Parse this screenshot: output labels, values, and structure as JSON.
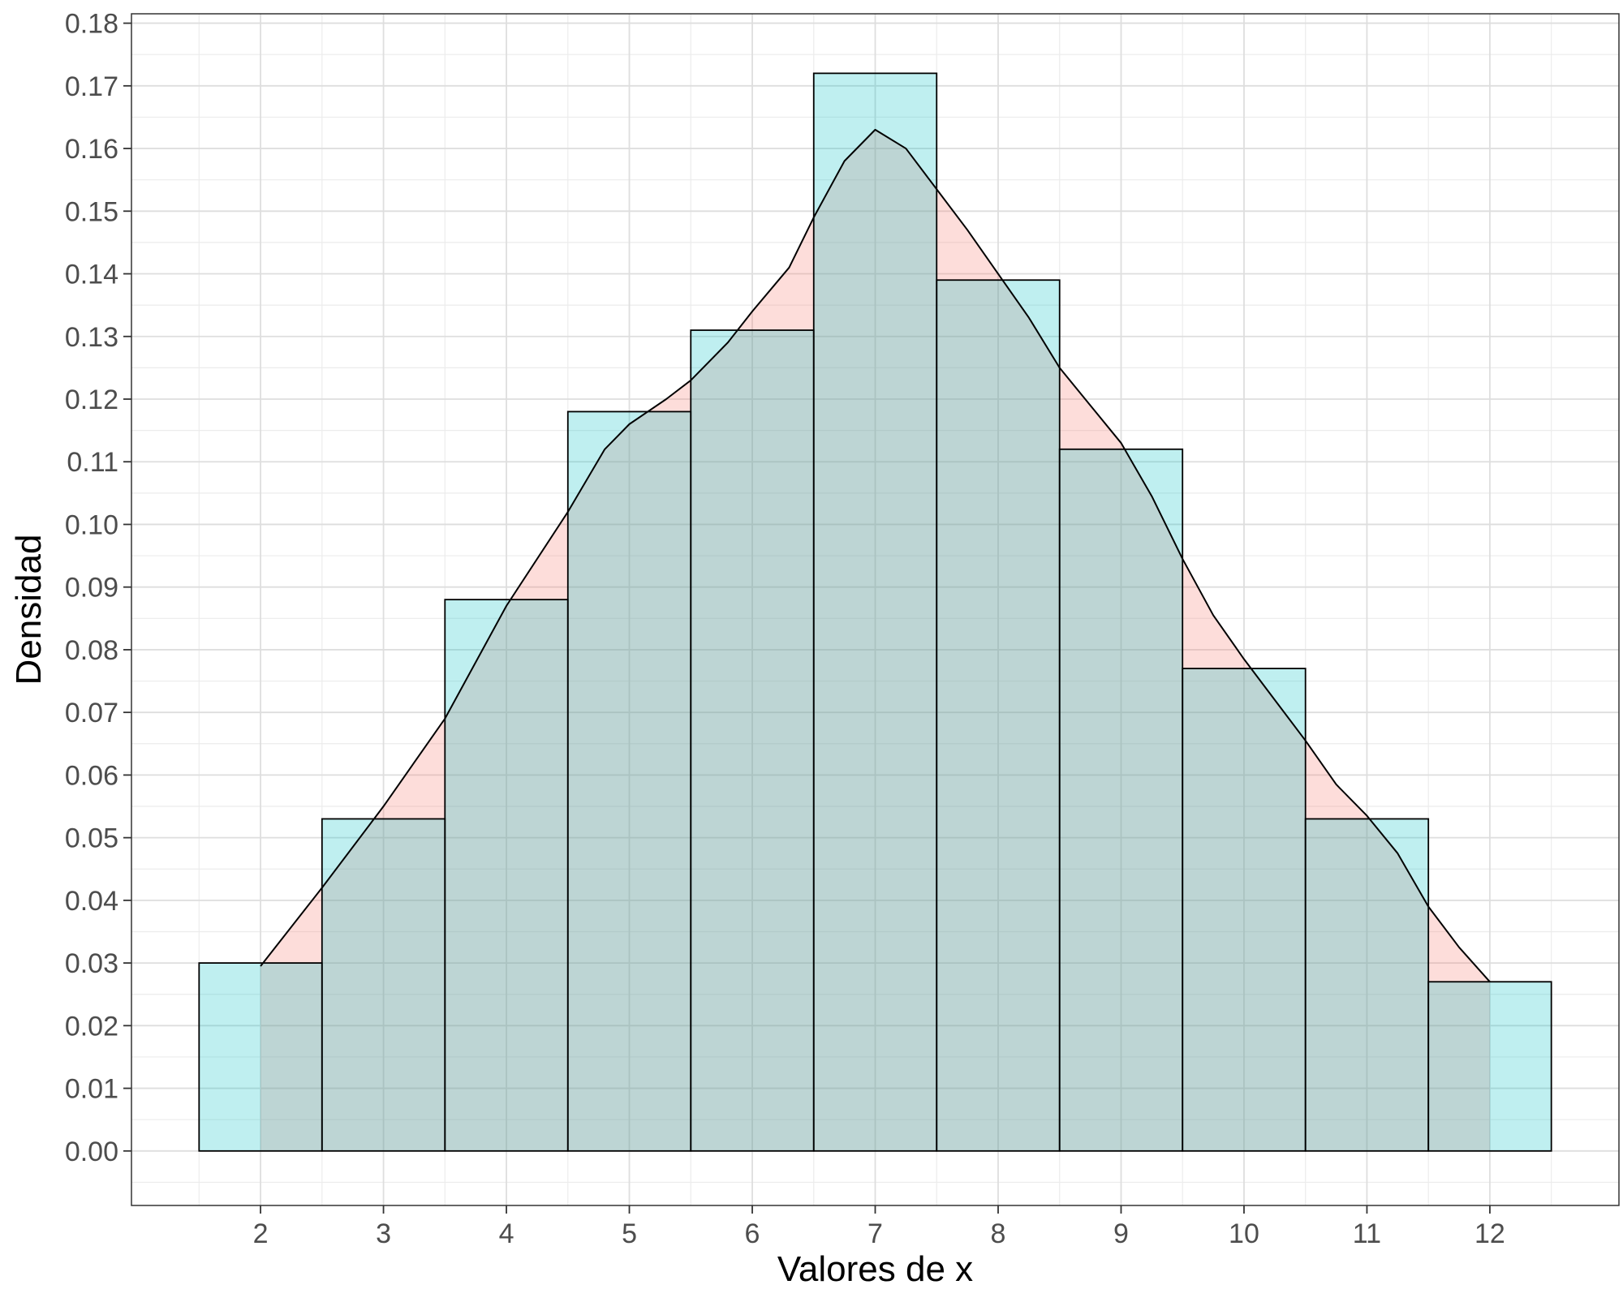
{
  "chart_data": {
    "type": "bar",
    "title": "",
    "xlabel": "Valores de x",
    "ylabel": "Densidad",
    "x_ticks": [
      2,
      3,
      4,
      5,
      6,
      7,
      8,
      9,
      10,
      11,
      12
    ],
    "y_ticks": [
      "0.00",
      "0.01",
      "0.02",
      "0.03",
      "0.04",
      "0.05",
      "0.06",
      "0.07",
      "0.08",
      "0.09",
      "0.10",
      "0.11",
      "0.12",
      "0.13",
      "0.14",
      "0.15",
      "0.16",
      "0.17",
      "0.18"
    ],
    "xlim": [
      0.95,
      13.05
    ],
    "ylim": [
      -0.0087,
      0.1815
    ],
    "grid": true,
    "legend": "none",
    "series": [
      {
        "type": "histogram",
        "fill": "#00BFC4",
        "fill_opacity": 0.25,
        "outline": "#000000",
        "bins": [
          {
            "x0": 1.5,
            "x1": 2.5,
            "value": 0.03
          },
          {
            "x0": 2.5,
            "x1": 3.5,
            "value": 0.053
          },
          {
            "x0": 3.5,
            "x1": 4.5,
            "value": 0.088
          },
          {
            "x0": 4.5,
            "x1": 5.5,
            "value": 0.118
          },
          {
            "x0": 5.5,
            "x1": 6.5,
            "value": 0.131
          },
          {
            "x0": 6.5,
            "x1": 7.5,
            "value": 0.172
          },
          {
            "x0": 7.5,
            "x1": 8.5,
            "value": 0.139
          },
          {
            "x0": 8.5,
            "x1": 9.5,
            "value": 0.112
          },
          {
            "x0": 9.5,
            "x1": 10.5,
            "value": 0.077
          },
          {
            "x0": 10.5,
            "x1": 11.5,
            "value": 0.053
          },
          {
            "x0": 11.5,
            "x1": 12.5,
            "value": 0.027
          }
        ]
      },
      {
        "type": "density",
        "fill": "#F8766D",
        "fill_opacity": 0.25,
        "line": "#000000",
        "points": [
          [
            2.0,
            0.0295
          ],
          [
            2.5,
            0.042
          ],
          [
            3.0,
            0.055
          ],
          [
            3.5,
            0.069
          ],
          [
            4.0,
            0.087
          ],
          [
            4.5,
            0.102
          ],
          [
            4.8,
            0.112
          ],
          [
            5.0,
            0.116
          ],
          [
            5.3,
            0.12
          ],
          [
            5.5,
            0.123
          ],
          [
            5.8,
            0.129
          ],
          [
            6.0,
            0.134
          ],
          [
            6.3,
            0.141
          ],
          [
            6.5,
            0.149
          ],
          [
            6.75,
            0.158
          ],
          [
            7.0,
            0.163
          ],
          [
            7.25,
            0.16
          ],
          [
            7.5,
            0.1535
          ],
          [
            7.75,
            0.147
          ],
          [
            8.0,
            0.14
          ],
          [
            8.25,
            0.133
          ],
          [
            8.5,
            0.125
          ],
          [
            8.75,
            0.119
          ],
          [
            9.0,
            0.113
          ],
          [
            9.25,
            0.1045
          ],
          [
            9.5,
            0.0945
          ],
          [
            9.75,
            0.0855
          ],
          [
            10.0,
            0.0785
          ],
          [
            10.25,
            0.072
          ],
          [
            10.5,
            0.0655
          ],
          [
            10.75,
            0.0585
          ],
          [
            11.0,
            0.0535
          ],
          [
            11.25,
            0.0475
          ],
          [
            11.5,
            0.039
          ],
          [
            11.75,
            0.0325
          ],
          [
            12.0,
            0.027
          ]
        ]
      }
    ]
  }
}
